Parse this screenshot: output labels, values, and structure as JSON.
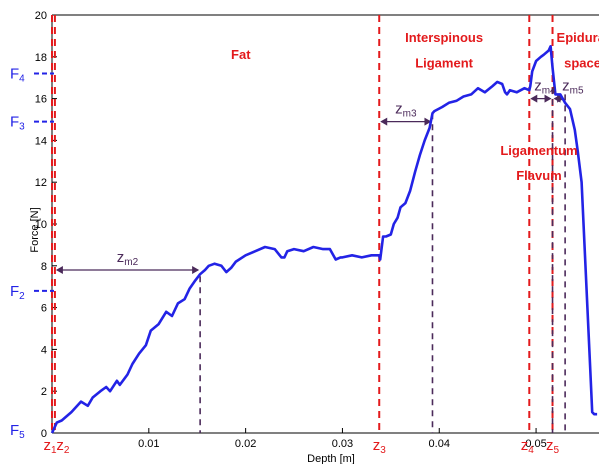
{
  "chart_data": {
    "type": "line",
    "xlabel": "Depth [m]",
    "ylabel": "Force [N]",
    "xlim": [
      0,
      0.0565
    ],
    "ylim": [
      0,
      20
    ],
    "grid": false,
    "xtick_values": [
      0.01,
      0.02,
      0.03,
      0.04,
      0.05
    ],
    "xtick_labels": [
      "0.01",
      "0.02",
      "0.03",
      "0.04",
      "0.05"
    ],
    "ytick_values": [
      0,
      2,
      4,
      6,
      8,
      10,
      12,
      14,
      16,
      18,
      20
    ],
    "ytick_labels": [
      "0",
      "2",
      "4",
      "6",
      "8",
      "10",
      "12",
      "14",
      "16",
      "18",
      "20"
    ],
    "colors": {
      "curve": "#2323e6",
      "z_lines": "#e31a1c",
      "zm_lines": "#4b2a5a",
      "labels_red": "#e31a1c",
      "labels_blue": "#2323e6"
    },
    "series": [
      {
        "x": [
          0.0,
          0.0003,
          0.0005,
          0.001,
          0.002,
          0.003,
          0.0037,
          0.0042,
          0.005,
          0.0056,
          0.006,
          0.0067,
          0.007,
          0.0078,
          0.0083,
          0.009,
          0.0097,
          0.0102,
          0.011,
          0.0118,
          0.0124,
          0.013,
          0.0137,
          0.0142,
          0.0148,
          0.0153,
          0.0158,
          0.0162,
          0.0168,
          0.0175,
          0.018,
          0.0185,
          0.019,
          0.02,
          0.021,
          0.022,
          0.023,
          0.0237,
          0.024,
          0.0243,
          0.025,
          0.026,
          0.027,
          0.028,
          0.0287,
          0.0293,
          0.0298,
          0.03,
          0.031,
          0.032,
          0.033,
          0.0338,
          0.0339,
          0.0342,
          0.0345,
          0.035,
          0.0353,
          0.0357,
          0.036,
          0.0365,
          0.037,
          0.0375,
          0.038,
          0.0385,
          0.039,
          0.0393,
          0.0395,
          0.0403,
          0.041,
          0.0418,
          0.0425,
          0.0433,
          0.044,
          0.0447,
          0.0455,
          0.046,
          0.0465,
          0.0468,
          0.047,
          0.0473,
          0.048,
          0.0488,
          0.0493,
          0.0494,
          0.0496,
          0.05,
          0.0505,
          0.0508,
          0.0513,
          0.0515,
          0.0517,
          0.052,
          0.0525,
          0.053,
          0.0535,
          0.054,
          0.0543,
          0.0547,
          0.055,
          0.0553,
          0.0556,
          0.0558,
          0.056,
          0.0563
        ],
        "y": [
          0.0,
          0.3,
          0.5,
          0.6,
          1.0,
          1.5,
          1.3,
          1.7,
          2.0,
          2.2,
          2.0,
          2.5,
          2.3,
          2.8,
          3.3,
          3.8,
          4.2,
          4.9,
          5.2,
          5.8,
          5.6,
          6.2,
          6.4,
          6.9,
          7.3,
          7.6,
          7.8,
          8.0,
          8.1,
          8.0,
          7.7,
          7.9,
          8.2,
          8.5,
          8.7,
          8.9,
          8.8,
          8.4,
          8.4,
          8.7,
          8.8,
          8.7,
          8.9,
          8.8,
          8.8,
          8.3,
          8.4,
          8.4,
          8.5,
          8.4,
          8.5,
          8.5,
          8.3,
          9.4,
          9.4,
          9.5,
          10.0,
          10.3,
          10.8,
          11.0,
          11.6,
          12.5,
          13.3,
          14.0,
          14.6,
          15.3,
          15.4,
          15.6,
          15.8,
          15.9,
          16.1,
          16.2,
          16.5,
          16.3,
          16.6,
          16.8,
          16.7,
          16.3,
          16.2,
          16.4,
          16.3,
          16.5,
          16.4,
          16.6,
          17.3,
          17.8,
          18.0,
          18.1,
          18.3,
          18.5,
          17.5,
          16.2,
          16.2,
          15.8,
          15.5,
          14.5,
          13.5,
          12.0,
          9.0,
          6.0,
          3.0,
          1.0,
          0.9,
          0.9
        ]
      }
    ],
    "z_markers": [
      {
        "label": "z",
        "sub": "1",
        "x": 0.0
      },
      {
        "label": "z",
        "sub": "2",
        "x": 0.0003
      },
      {
        "label": "z",
        "sub": "3",
        "x": 0.0338
      },
      {
        "label": "z",
        "sub": "4",
        "x": 0.0493
      },
      {
        "label": "z",
        "sub": "5",
        "x": 0.0517
      }
    ],
    "zm_markers": [
      {
        "label": "z",
        "sub": "m2",
        "x_start": 0.0003,
        "x_end": 0.0153,
        "arrow_y": 7.8,
        "line_top": 7.5
      },
      {
        "label": "z",
        "sub": "m3",
        "x_start": 0.0338,
        "x_end": 0.0393,
        "arrow_y": 14.9,
        "line_top": 15.3
      },
      {
        "label": "z",
        "sub": "m4",
        "x_start": 0.0493,
        "x_end": 0.0517,
        "arrow_y": 16.0,
        "line_top": 16.5
      },
      {
        "label": "z",
        "sub": "m5",
        "x_start": 0.0517,
        "x_end": 0.053,
        "arrow_y": 16.0,
        "line_top": 16.2
      }
    ],
    "force_levels": [
      {
        "label": "F",
        "sub": "4",
        "y": 17.2
      },
      {
        "label": "F",
        "sub": "3",
        "y": 14.9
      },
      {
        "label": "F",
        "sub": "2",
        "y": 6.8
      },
      {
        "label": "F",
        "sub": "5",
        "y": 0.0
      }
    ],
    "region_labels": [
      {
        "text": "Fat",
        "x": 0.0195,
        "y": 17.9
      },
      {
        "text": "Interspinous",
        "x": 0.0405,
        "y": 18.7
      },
      {
        "text": "Ligament",
        "x": 0.0405,
        "y": 17.5
      },
      {
        "text": "Epidural",
        "x": 0.0548,
        "y": 18.7
      },
      {
        "text": "space",
        "x": 0.0548,
        "y": 17.5
      },
      {
        "text": "Ligamentum",
        "x": 0.0503,
        "y": 13.3
      },
      {
        "text": "Flavum",
        "x": 0.0503,
        "y": 12.1
      }
    ]
  }
}
